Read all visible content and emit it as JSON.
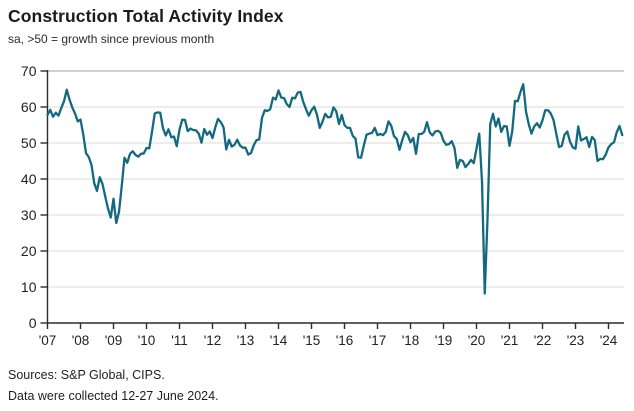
{
  "header": {
    "title": "Construction Total Activity Index",
    "subtitle": "sa, >50 = growth since previous month"
  },
  "footer": {
    "sources": "Sources: S&P Global, CIPS.",
    "collection_note": "Data were collected 12-27 June 2024."
  },
  "colors": {
    "line": "#136a80",
    "gridline": "#e2e2e2",
    "gridline_top": "#b3b3b3",
    "axis": "#2b2b2b",
    "tick_label": "#222222"
  },
  "chart_data": {
    "type": "line",
    "title": "Construction Total Activity Index",
    "subtitle": "sa, >50 = growth since previous month",
    "xlabel": "",
    "ylabel": "",
    "ylim": [
      0,
      70
    ],
    "y_ticks": [
      0,
      10,
      20,
      30,
      40,
      50,
      60,
      70
    ],
    "x_tick_labels": [
      "'07",
      "'08",
      "'09",
      "'10",
      "'11",
      "'12",
      "'13",
      "'14",
      "'15",
      "'16",
      "'17",
      "'18",
      "'19",
      "'20",
      "'21",
      "'22",
      "'23",
      "'24"
    ],
    "x_monthly_start": "2007-01",
    "x_monthly_end": "2024-06",
    "grid": "horizontal",
    "legend_position": "none",
    "series": [
      {
        "name": "Construction Total Activity Index (sa)",
        "values": [
          57.8,
          59.2,
          57.3,
          58.4,
          57.6,
          59.7,
          61.6,
          64.8,
          62.1,
          59.9,
          58.2,
          56.0,
          56.5,
          52.4,
          47.2,
          46.1,
          43.9,
          38.8,
          36.7,
          40.5,
          38.6,
          35.1,
          31.8,
          29.3,
          34.5,
          27.8,
          30.9,
          38.1,
          45.9,
          44.5,
          47.0,
          47.7,
          46.7,
          46.2,
          47.0,
          47.1,
          48.6,
          48.5,
          53.1,
          58.2,
          58.5,
          58.4,
          54.1,
          52.1,
          53.8,
          51.6,
          51.8,
          49.1,
          53.7,
          56.5,
          56.4,
          53.3,
          54.0,
          53.6,
          53.5,
          52.6,
          50.1,
          53.9,
          52.3,
          53.2,
          51.4,
          54.3,
          56.7,
          55.8,
          54.4,
          48.2,
          50.9,
          49.0,
          49.5,
          50.9,
          49.3,
          48.7,
          48.7,
          46.8,
          47.2,
          49.4,
          50.8,
          51.0,
          57.0,
          59.1,
          58.9,
          59.4,
          62.6,
          62.1,
          64.6,
          62.6,
          62.5,
          60.8,
          60.0,
          62.6,
          62.4,
          64.0,
          64.2,
          61.4,
          59.4,
          57.6,
          59.1,
          60.1,
          57.8,
          54.2,
          55.9,
          58.1,
          57.1,
          57.3,
          59.9,
          58.8,
          55.3,
          57.8,
          55.0,
          54.2,
          54.2,
          52.0,
          51.2,
          46.0,
          45.9,
          49.2,
          52.3,
          52.6,
          52.8,
          54.2,
          52.2,
          52.5,
          52.2,
          53.1,
          56.0,
          54.8,
          51.9,
          51.1,
          48.1,
          50.8,
          53.1,
          52.2,
          50.2,
          51.4,
          47.0,
          52.5,
          52.5,
          53.1,
          55.8,
          52.9,
          52.1,
          53.2,
          53.4,
          52.8,
          50.6,
          49.5,
          49.7,
          50.5,
          48.6,
          43.1,
          45.3,
          45.0,
          43.3,
          44.2,
          45.3,
          44.4,
          48.4,
          52.6,
          39.3,
          8.2,
          28.9,
          55.3,
          58.1,
          54.6,
          56.8,
          53.1,
          54.7,
          54.6,
          49.2,
          53.3,
          61.7,
          61.6,
          64.2,
          66.3,
          58.7,
          55.2,
          52.6,
          54.6,
          55.5,
          54.3,
          56.3,
          59.1,
          59.1,
          58.2,
          56.4,
          52.6,
          48.9,
          49.2,
          52.3,
          53.2,
          50.4,
          48.8,
          48.4,
          54.6,
          50.7,
          51.1,
          51.6,
          48.9,
          51.7,
          50.8,
          45.0,
          45.6,
          45.5,
          46.8,
          48.8,
          49.7,
          50.2,
          53.0,
          54.7,
          52.2
        ]
      }
    ]
  }
}
